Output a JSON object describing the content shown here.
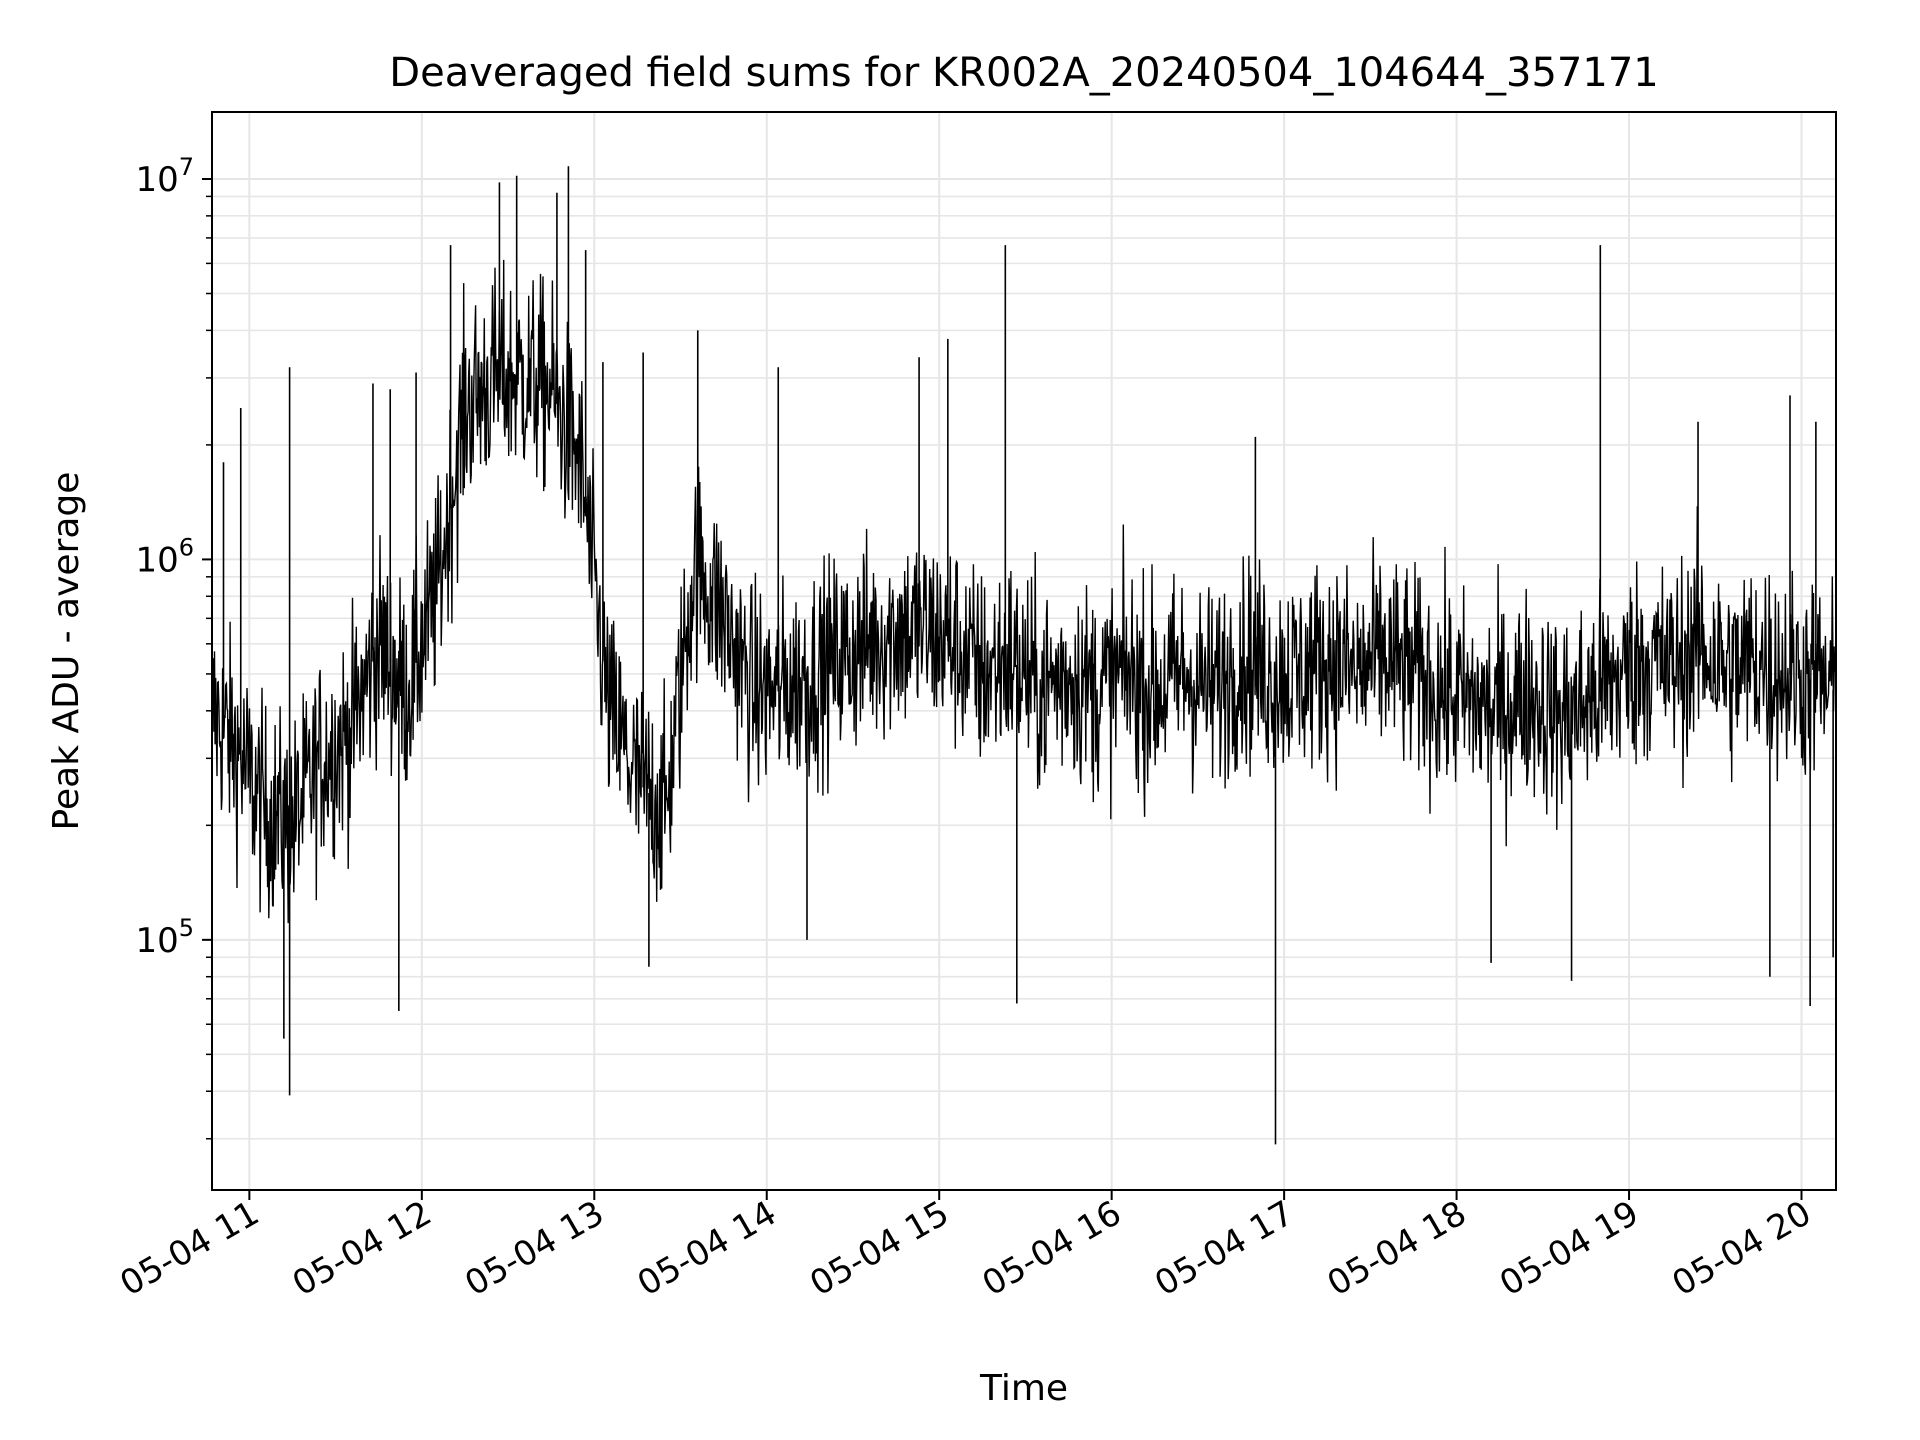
{
  "chart_data": {
    "type": "line",
    "title": "Deaveraged field sums for KR002A_20240504_104644_357171",
    "xlabel": "Time",
    "ylabel": "Peak ADU - average",
    "x_range": [
      "2024-05-04 10:47",
      "2024-05-04 20:12"
    ],
    "ylim": [
      22000,
      15000000
    ],
    "y_scale": "log",
    "grid": true,
    "x_ticks": [
      {
        "time": "2024-05-04 11:00",
        "label": "05-04 11"
      },
      {
        "time": "2024-05-04 12:00",
        "label": "05-04 12"
      },
      {
        "time": "2024-05-04 13:00",
        "label": "05-04 13"
      },
      {
        "time": "2024-05-04 14:00",
        "label": "05-04 14"
      },
      {
        "time": "2024-05-04 15:00",
        "label": "05-04 15"
      },
      {
        "time": "2024-05-04 16:00",
        "label": "05-04 16"
      },
      {
        "time": "2024-05-04 17:00",
        "label": "05-04 17"
      },
      {
        "time": "2024-05-04 18:00",
        "label": "05-04 18"
      },
      {
        "time": "2024-05-04 19:00",
        "label": "05-04 19"
      },
      {
        "time": "2024-05-04 20:00",
        "label": "05-04 20"
      }
    ],
    "y_ticks": [
      {
        "value": 100000,
        "base": "10",
        "exp": "5"
      },
      {
        "value": 1000000,
        "base": "10",
        "exp": "6"
      },
      {
        "value": 10000000,
        "base": "10",
        "exp": "7"
      }
    ],
    "series_color": "#000000",
    "series": [
      {
        "x": [
          "2024-05-04 10:47",
          "2024-05-04 10:55",
          "2024-05-04 11:05",
          "2024-05-04 11:15",
          "2024-05-04 11:25",
          "2024-05-04 11:35",
          "2024-05-04 11:45",
          "2024-05-04 11:55",
          "2024-05-04 12:05",
          "2024-05-04 12:15",
          "2024-05-04 12:25",
          "2024-05-04 12:35",
          "2024-05-04 12:45",
          "2024-05-04 12:55",
          "2024-05-04 13:05",
          "2024-05-04 13:15",
          "2024-05-04 13:25",
          "2024-05-04 13:35",
          "2024-05-04 13:45",
          "2024-05-04 13:55",
          "2024-05-04 14:05",
          "2024-05-04 14:15",
          "2024-05-04 14:25",
          "2024-05-04 14:35",
          "2024-05-04 14:45",
          "2024-05-04 14:55",
          "2024-05-04 15:05",
          "2024-05-04 15:15",
          "2024-05-04 15:25",
          "2024-05-04 15:35",
          "2024-05-04 15:45",
          "2024-05-04 15:55",
          "2024-05-04 16:05",
          "2024-05-04 16:15",
          "2024-05-04 16:25",
          "2024-05-04 16:35",
          "2024-05-04 16:45",
          "2024-05-04 16:55",
          "2024-05-04 17:05",
          "2024-05-04 17:15",
          "2024-05-04 17:25",
          "2024-05-04 17:35",
          "2024-05-04 17:45",
          "2024-05-04 17:55",
          "2024-05-04 18:05",
          "2024-05-04 18:15",
          "2024-05-04 18:25",
          "2024-05-04 18:35",
          "2024-05-04 18:45",
          "2024-05-04 18:55",
          "2024-05-04 19:05",
          "2024-05-04 19:15",
          "2024-05-04 19:25",
          "2024-05-04 19:35",
          "2024-05-04 19:45",
          "2024-05-04 19:55",
          "2024-05-04 20:05",
          "2024-05-04 20:12"
        ],
        "y": [
          400000,
          320000,
          220000,
          200000,
          300000,
          350000,
          600000,
          450000,
          800000,
          2500000,
          3000000,
          3000000,
          2800000,
          1800000,
          400000,
          260000,
          220000,
          1000000,
          700000,
          450000,
          450000,
          500000,
          550000,
          600000,
          650000,
          650000,
          600000,
          500000,
          550000,
          450000,
          500000,
          450000,
          500000,
          450000,
          500000,
          450000,
          550000,
          500000,
          500000,
          550000,
          500000,
          550000,
          500000,
          450000,
          420000,
          400000,
          450000,
          380000,
          420000,
          480000,
          550000,
          520000,
          600000,
          500000,
          550000,
          500000,
          480000,
          450000
        ],
        "peaks": [
          {
            "x": "2024-05-04 10:51",
            "y": 1800000
          },
          {
            "x": "2024-05-04 10:57",
            "y": 2500000
          },
          {
            "x": "2024-05-04 11:14",
            "y": 3200000
          },
          {
            "x": "2024-05-04 11:43",
            "y": 2900000
          },
          {
            "x": "2024-05-04 11:49",
            "y": 2800000
          },
          {
            "x": "2024-05-04 11:58",
            "y": 3100000
          },
          {
            "x": "2024-05-04 12:10",
            "y": 6700000
          },
          {
            "x": "2024-05-04 12:27",
            "y": 9800000
          },
          {
            "x": "2024-05-04 12:33",
            "y": 10200000
          },
          {
            "x": "2024-05-04 12:47",
            "y": 9200000
          },
          {
            "x": "2024-05-04 12:51",
            "y": 10800000
          },
          {
            "x": "2024-05-04 12:57",
            "y": 6500000
          },
          {
            "x": "2024-05-04 13:03",
            "y": 3300000
          },
          {
            "x": "2024-05-04 13:17",
            "y": 3500000
          },
          {
            "x": "2024-05-04 13:36",
            "y": 4000000
          },
          {
            "x": "2024-05-04 14:04",
            "y": 3200000
          },
          {
            "x": "2024-05-04 14:53",
            "y": 3400000
          },
          {
            "x": "2024-05-04 15:03",
            "y": 3800000
          },
          {
            "x": "2024-05-04 15:23",
            "y": 6700000
          },
          {
            "x": "2024-05-04 16:50",
            "y": 2100000
          },
          {
            "x": "2024-05-04 18:50",
            "y": 6700000
          },
          {
            "x": "2024-05-04 19:24",
            "y": 2300000
          },
          {
            "x": "2024-05-04 19:56",
            "y": 2700000
          },
          {
            "x": "2024-05-04 20:05",
            "y": 2300000
          }
        ],
        "troughs": [
          {
            "x": "2024-05-04 11:14",
            "y": 39000
          },
          {
            "x": "2024-05-04 11:12",
            "y": 55000
          },
          {
            "x": "2024-05-04 11:52",
            "y": 65000
          },
          {
            "x": "2024-05-04 13:19",
            "y": 85000
          },
          {
            "x": "2024-05-04 14:14",
            "y": 100000
          },
          {
            "x": "2024-05-04 15:27",
            "y": 68000
          },
          {
            "x": "2024-05-04 16:57",
            "y": 29000
          },
          {
            "x": "2024-05-04 18:12",
            "y": 87000
          },
          {
            "x": "2024-05-04 18:40",
            "y": 78000
          },
          {
            "x": "2024-05-04 19:49",
            "y": 80000
          },
          {
            "x": "2024-05-04 20:03",
            "y": 67000
          },
          {
            "x": "2024-05-04 20:11",
            "y": 90000
          }
        ]
      }
    ]
  }
}
